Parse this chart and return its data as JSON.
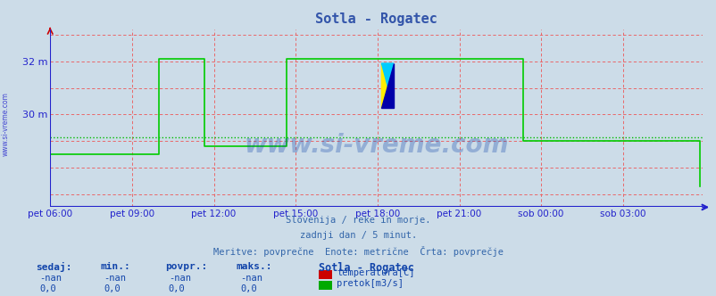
{
  "title": "Sotla - Rogatec",
  "title_color": "#3355aa",
  "bg_color": "#ccdce8",
  "plot_bg_color": "#ccdce8",
  "xlabel_ticks": [
    "pet 06:00",
    "pet 09:00",
    "pet 12:00",
    "pet 15:00",
    "pet 18:00",
    "pet 21:00",
    "sob 00:00",
    "sob 03:00"
  ],
  "ytick_labels": [
    "32 m",
    "30 m"
  ],
  "ytick_values": [
    32.0,
    30.0
  ],
  "ylim": [
    26.5,
    33.2
  ],
  "xlim_min": 0,
  "xlim_max": 287,
  "tick_positions_x": [
    0,
    36,
    72,
    108,
    144,
    180,
    216,
    252
  ],
  "avg_line_y": 29.15,
  "avg_line_color": "#00bb00",
  "line_color": "#00cc00",
  "axis_color": "#2222cc",
  "grid_color": "#ee5555",
  "watermark": "www.si-vreme.com",
  "watermark_color": "#1144aa",
  "sub_text1": "Slovenija / reke in morje.",
  "sub_text2": "zadnji dan / 5 minut.",
  "sub_text3": "Meritve: povprečne  Enote: metrične  Črta: povprečje",
  "sub_text_color": "#3366aa",
  "legend_title": "Sotla - Rogatec",
  "legend_color1": "#cc0000",
  "legend_color2": "#00aa00",
  "legend_label1": "temperatura[C]",
  "legend_label2": "pretok[m3/s]",
  "footer_labels": [
    "sedaj:",
    "min.:",
    "povpr.:",
    "maks.:"
  ],
  "footer_vals_temp": [
    "-nan",
    "-nan",
    "-nan",
    "-nan"
  ],
  "footer_vals_flow": [
    "0,0",
    "0,0",
    "0,0",
    "0,0"
  ],
  "flow_data": [
    28.5,
    28.5,
    28.5,
    28.5,
    28.5,
    28.5,
    28.5,
    28.5,
    28.5,
    28.5,
    28.5,
    28.5,
    28.5,
    28.5,
    28.5,
    28.5,
    28.5,
    28.5,
    28.5,
    28.5,
    28.5,
    28.5,
    28.5,
    28.5,
    28.5,
    28.5,
    28.5,
    28.5,
    28.5,
    28.5,
    28.5,
    28.5,
    28.5,
    28.5,
    28.5,
    28.5,
    28.5,
    28.5,
    28.5,
    28.5,
    28.5,
    28.5,
    28.5,
    28.5,
    28.5,
    28.5,
    28.5,
    28.5,
    32.1,
    32.1,
    32.1,
    32.1,
    32.1,
    32.1,
    32.1,
    32.1,
    32.1,
    32.1,
    32.1,
    32.1,
    32.1,
    32.1,
    32.1,
    32.1,
    32.1,
    32.1,
    32.1,
    32.1,
    28.8,
    28.8,
    28.8,
    28.8,
    28.8,
    28.8,
    28.8,
    28.8,
    28.8,
    28.8,
    28.8,
    28.8,
    28.8,
    28.8,
    28.8,
    28.8,
    28.8,
    28.8,
    28.8,
    28.8,
    28.8,
    28.8,
    28.8,
    28.8,
    28.8,
    28.8,
    28.8,
    28.8,
    28.8,
    28.8,
    28.8,
    28.8,
    28.8,
    28.8,
    28.8,
    28.8,
    32.1,
    32.1,
    32.1,
    32.1,
    32.1,
    32.1,
    32.1,
    32.1,
    32.1,
    32.1,
    32.1,
    32.1,
    32.1,
    32.1,
    32.1,
    32.1,
    32.1,
    32.1,
    32.1,
    32.1,
    32.1,
    32.1,
    32.1,
    32.1,
    32.1,
    32.1,
    32.1,
    32.1,
    32.1,
    32.1,
    32.1,
    32.1,
    32.1,
    32.1,
    32.1,
    32.1,
    32.1,
    32.1,
    32.1,
    32.1,
    32.1,
    32.1,
    32.1,
    32.1,
    32.1,
    32.1,
    32.1,
    32.1,
    32.1,
    32.1,
    32.1,
    32.1,
    32.1,
    32.1,
    32.1,
    32.1,
    32.1,
    32.1,
    32.1,
    32.1,
    32.1,
    32.1,
    32.1,
    32.1,
    32.1,
    32.1,
    32.1,
    32.1,
    32.1,
    32.1,
    32.1,
    32.1,
    32.1,
    32.1,
    32.1,
    32.1,
    32.1,
    32.1,
    32.1,
    32.1,
    32.1,
    32.1,
    32.1,
    32.1,
    32.1,
    32.1,
    32.1,
    32.1,
    32.1,
    32.1,
    32.1,
    32.1,
    32.1,
    32.1,
    32.1,
    32.1,
    32.1,
    32.1,
    32.1,
    32.1,
    32.1,
    32.1,
    32.1,
    32.1,
    29.0,
    29.0,
    29.0,
    29.0,
    29.0,
    29.0,
    29.0,
    29.0,
    29.0,
    29.0,
    29.0,
    29.0,
    29.0,
    29.0,
    29.0,
    29.0,
    29.0,
    29.0,
    29.0,
    29.0,
    29.0,
    29.0,
    29.0,
    29.0,
    29.0,
    29.0,
    29.0,
    29.0,
    29.0,
    29.0,
    29.0,
    29.0,
    29.0,
    29.0,
    29.0,
    29.0,
    29.0,
    29.0,
    29.0,
    29.0,
    29.0,
    29.0,
    29.0,
    29.0,
    29.0,
    29.0,
    29.0,
    29.0,
    29.0,
    29.0,
    29.0,
    29.0,
    29.0,
    29.0,
    29.0,
    29.0,
    29.0,
    29.0,
    29.0,
    29.0,
    29.0,
    29.0,
    29.0,
    29.0,
    29.0,
    29.0,
    29.0,
    29.0,
    29.0,
    29.0,
    29.0,
    29.0,
    29.0,
    29.0,
    29.0,
    29.0,
    29.0,
    29.0,
    27.3
  ]
}
